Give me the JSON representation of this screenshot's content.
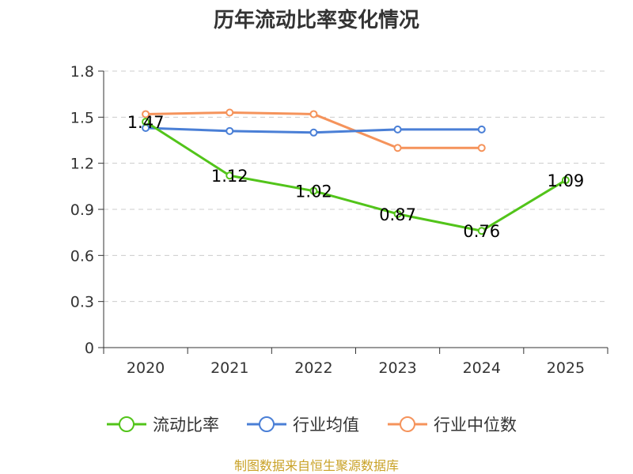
{
  "chart_data": {
    "type": "line",
    "title": "历年流动比率变化情况",
    "categories": [
      "2020",
      "2021",
      "2022",
      "2023",
      "2024",
      "2025"
    ],
    "ylim": [
      0,
      1.8
    ],
    "yticks": [
      "0",
      "0.3",
      "0.6",
      "0.9",
      "1.2",
      "1.5",
      "1.8"
    ],
    "grid": true,
    "legend_position": "bottom",
    "series": [
      {
        "name": "流动比率",
        "color": "#52c41a",
        "values": [
          1.47,
          1.12,
          1.02,
          0.87,
          0.76,
          1.09
        ],
        "labels": [
          "1.47",
          "1.12",
          "1.02",
          "0.87",
          "0.76",
          "1.09"
        ]
      },
      {
        "name": "行业均值",
        "color": "#4a7fd6",
        "values": [
          1.43,
          1.41,
          1.4,
          1.42,
          1.42,
          null
        ]
      },
      {
        "name": "行业中位数",
        "color": "#f5935b",
        "values": [
          1.52,
          1.53,
          1.52,
          1.3,
          1.3,
          null
        ]
      }
    ],
    "source": "制图数据来自恒生聚源数据库"
  }
}
